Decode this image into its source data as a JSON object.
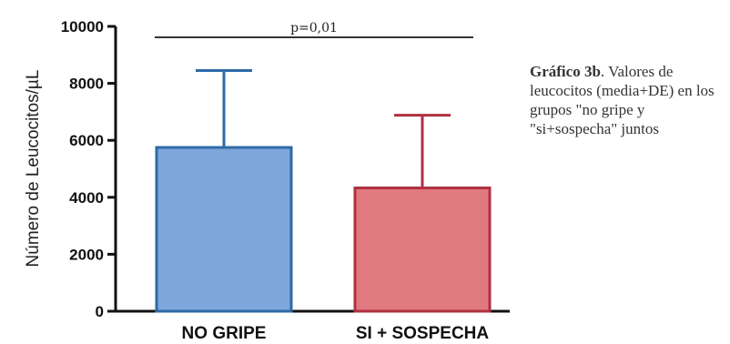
{
  "chart_data": {
    "type": "bar",
    "categories": [
      "NO GRIPE",
      "SI + SOSPECHA"
    ],
    "values": [
      5750,
      4330
    ],
    "error_plus": [
      2700,
      2550
    ],
    "ylim": [
      0,
      10000
    ],
    "yticks": [
      0,
      2000,
      4000,
      6000,
      8000,
      10000
    ],
    "yticks_labels": [
      "0",
      "2000",
      "4000",
      "6000",
      "8000",
      "10000"
    ],
    "ylabel": "Número de Leucocitos/µL",
    "xlabel": "",
    "grid": false,
    "significance": {
      "label": "p=0,01",
      "y": 9650
    },
    "colors": {
      "fill": [
        "#7fa6db",
        "#e07a80"
      ],
      "stroke": [
        "#2e6aa6",
        "#b03040"
      ],
      "axis": "#111111"
    }
  },
  "caption": {
    "title": "Gráfico 3b",
    "text": ". Valores de leucocitos (media+DE) en los grupos \"no gripe y \"si+sospecha\" juntos"
  }
}
